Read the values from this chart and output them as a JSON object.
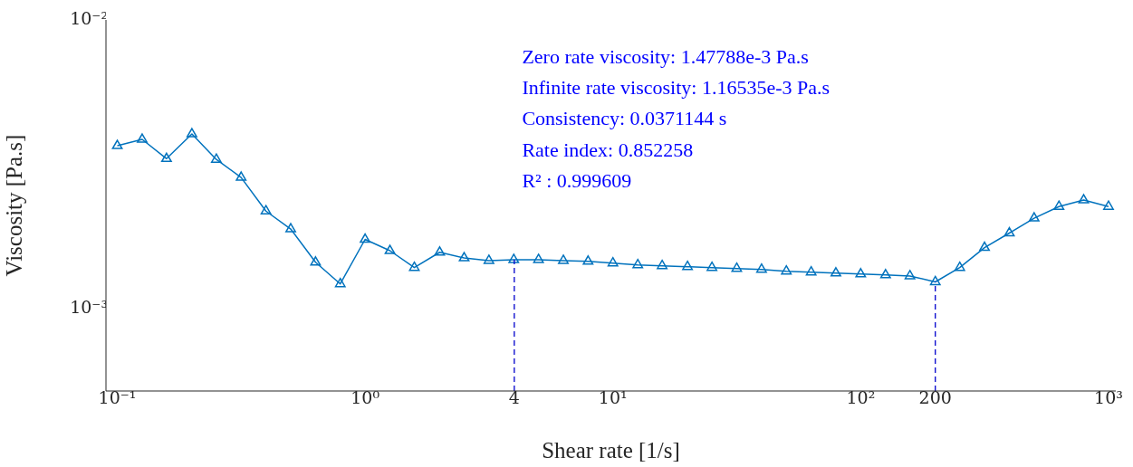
{
  "chart_data": {
    "type": "line",
    "xlabel": "Shear rate [1/s]",
    "ylabel": "Viscosity [Pa.s]",
    "log": "xy",
    "grid": false,
    "legend": false,
    "marker": "triangle",
    "line_style": "solid",
    "x": [
      0.1,
      0.126,
      0.158,
      0.2,
      0.251,
      0.316,
      0.398,
      0.501,
      0.631,
      0.794,
      1,
      1.26,
      1.58,
      2,
      2.51,
      3.16,
      3.98,
      5.01,
      6.31,
      7.94,
      10,
      12.6,
      15.8,
      20,
      25.1,
      31.6,
      39.8,
      50.1,
      63.1,
      79.4,
      100,
      126,
      158,
      200,
      251,
      316,
      398,
      501,
      631,
      794,
      1000
    ],
    "series": [
      {
        "color": "#0072bd",
        "values": [
          0.00367,
          0.00386,
          0.00331,
          0.00403,
          0.00329,
          0.00285,
          0.00218,
          0.00189,
          0.00145,
          0.00122,
          0.00174,
          0.00159,
          0.00139,
          0.00157,
          0.0015,
          0.00147,
          0.00148,
          0.00148,
          0.00147,
          0.00146,
          0.00144,
          0.00142,
          0.00141,
          0.0014,
          0.00139,
          0.00138,
          0.00137,
          0.00135,
          0.00134,
          0.00133,
          0.00132,
          0.00131,
          0.0013,
          0.00124,
          0.00139,
          0.00163,
          0.00183,
          0.00206,
          0.00226,
          0.00238,
          0.00226
        ]
      }
    ],
    "xlim": [
      0.09,
      1070
    ],
    "ylim": [
      0.00052,
      0.01
    ],
    "xticks": [
      {
        "value": 0.1,
        "label": "10⁻¹"
      },
      {
        "value": 1,
        "label": "10⁰"
      },
      4,
      {
        "value": 10,
        "label": "10¹"
      },
      {
        "value": 100,
        "label": "10²"
      },
      200,
      {
        "value": 1000,
        "label": "10³"
      }
    ],
    "yticks": [
      {
        "value": 0.001,
        "label": "10⁻³"
      },
      {
        "value": 0.01,
        "label": "10⁻²"
      }
    ],
    "ref_lines": [
      {
        "axis": "x",
        "value": 4,
        "color": "#0000cc",
        "line_style": "dashed"
      },
      {
        "axis": "x",
        "value": 200,
        "color": "#0000cc",
        "line_style": "dashed"
      }
    ],
    "annotations": [
      "Zero rate viscosity: 1.47788e-3 Pa.s",
      "Infinite rate viscosity: 1.16535e-3 Pa.s",
      "Consistency: 0.0371144 s",
      "Rate index: 0.852258",
      "R² : 0.999609"
    ]
  }
}
